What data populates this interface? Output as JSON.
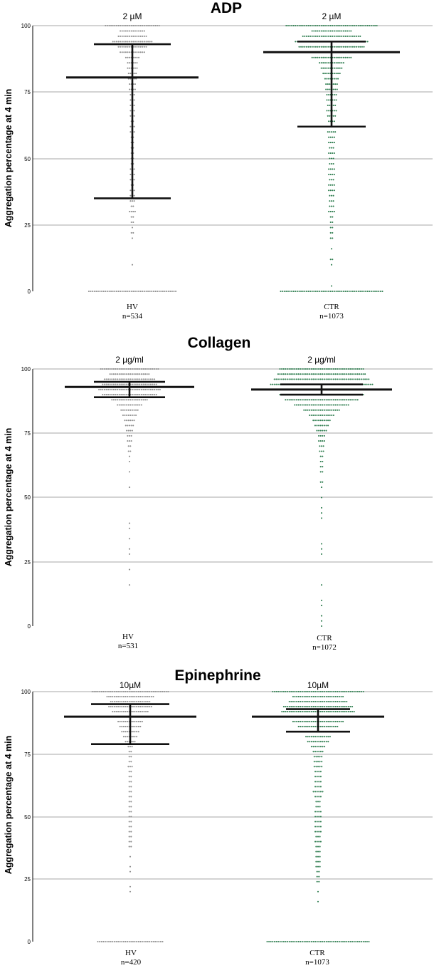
{
  "colors": {
    "hv": "#8c8c8c",
    "ctr": "#2e7d4f",
    "grid": "#8a8a8a",
    "stat": "#111111"
  },
  "chart_data": [
    {
      "type": "scatter",
      "title": "ADP",
      "ylabel": "Aggregation percentage at 4 min",
      "ylim": [
        0,
        100
      ],
      "yticks": [
        "0",
        "25",
        "50",
        "75",
        "100"
      ],
      "grid": true,
      "groups": [
        {
          "name": "HV",
          "n_label": "n=534",
          "concentration": "2 µM",
          "mean": 80.5,
          "upper": 93,
          "lower": 35,
          "median": null
        },
        {
          "name": "CTR",
          "n_label": "n=1073",
          "concentration": "2 µM",
          "mean": 90,
          "upper": 94,
          "lower": 62,
          "median": 90
        }
      ]
    },
    {
      "type": "scatter",
      "title": "Collagen",
      "ylabel": "Aggregation percentage at 4 min",
      "ylim": [
        0,
        100
      ],
      "yticks": [
        "0",
        "25",
        "50",
        "75",
        "100"
      ],
      "grid": true,
      "groups": [
        {
          "name": "HV",
          "n_label": "n=531",
          "concentration": "2 µg/ml",
          "mean": 93,
          "upper": 95,
          "lower": 89,
          "median": null
        },
        {
          "name": "CTR",
          "n_label": "n=1072",
          "concentration": "2 µg/ml",
          "mean": 92,
          "upper": 94,
          "lower": 90,
          "median": null
        }
      ]
    },
    {
      "type": "scatter",
      "title": "Epinephrine",
      "ylabel": "Aggregation percentage at 4 min",
      "ylim": [
        0,
        100
      ],
      "yticks": [
        "0",
        "25",
        "50",
        "75",
        "100"
      ],
      "grid": true,
      "groups": [
        {
          "name": "HV",
          "n_label": "n=420",
          "concentration": "10µM",
          "mean": 90,
          "upper": 95,
          "lower": 79,
          "median": null
        },
        {
          "name": "CTR",
          "n_label": "n=1073",
          "concentration": "10µM",
          "mean": 90,
          "upper": 93,
          "lower": 84,
          "median": null
        }
      ]
    }
  ]
}
